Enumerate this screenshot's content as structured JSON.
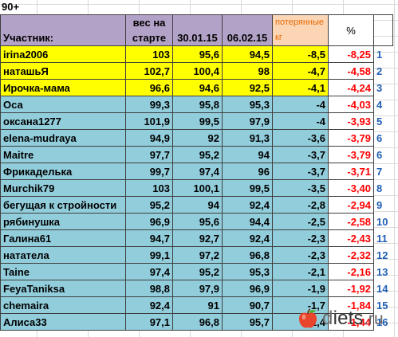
{
  "title": "90+",
  "headers": {
    "name": "Участник:",
    "start": [
      "вес на",
      "старте"
    ],
    "d1": "30.01.15",
    "d2": "06.02.15",
    "lost": [
      "потерянные",
      "кг"
    ],
    "pct": "%"
  },
  "rows": [
    {
      "name": "irina2006",
      "start": "103",
      "d1": "95,6",
      "d2": "94,5",
      "lost": "-8,5",
      "pct": "-8,25",
      "idx": "1",
      "hl": "yellow"
    },
    {
      "name": "наташьЯ",
      "start": "102,7",
      "d1": "100,4",
      "d2": "98",
      "lost": "-4,7",
      "pct": "-4,58",
      "idx": "2",
      "hl": "yellow"
    },
    {
      "name": "Ирочка-мама",
      "start": "96,6",
      "d1": "94,6",
      "d2": "92,5",
      "lost": "-4,1",
      "pct": "-4,24",
      "idx": "3",
      "hl": "yellow"
    },
    {
      "name": "Оса",
      "start": "99,3",
      "d1": "95,8",
      "d2": "95,3",
      "lost": "-4",
      "pct": "-4,03",
      "idx": "4",
      "hl": "blue"
    },
    {
      "name": "оксана1277",
      "start": "101,9",
      "d1": "99,5",
      "d2": "97,9",
      "lost": "-4",
      "pct": "-3,93",
      "idx": "5",
      "hl": "blue"
    },
    {
      "name": "elena-mudraya",
      "start": "94,9",
      "d1": "92",
      "d2": "91,3",
      "lost": "-3,6",
      "pct": "-3,79",
      "idx": "6",
      "hl": "blue"
    },
    {
      "name": "Maitre",
      "start": "97,7",
      "d1": "95,2",
      "d2": "94",
      "lost": "-3,7",
      "pct": "-3,79",
      "idx": "6",
      "hl": "blue"
    },
    {
      "name": "Фрикаделька",
      "start": "99,7",
      "d1": "97,4",
      "d2": "96",
      "lost": "-3,7",
      "pct": "-3,71",
      "idx": "7",
      "hl": "blue"
    },
    {
      "name": "Murchik79",
      "start": "103",
      "d1": "100,1",
      "d2": "99,5",
      "lost": "-3,5",
      "pct": "-3,40",
      "idx": "8",
      "hl": "blue"
    },
    {
      "name": "бегущая к стройности",
      "start": "95,2",
      "d1": "94",
      "d2": "92,4",
      "lost": "-2,8",
      "pct": "-2,94",
      "idx": "9",
      "hl": "blue"
    },
    {
      "name": "рябинушка",
      "start": "96,9",
      "d1": "95,6",
      "d2": "94,4",
      "lost": "-2,5",
      "pct": "-2,58",
      "idx": "10",
      "hl": "blue"
    },
    {
      "name": "Галина61",
      "start": "94,7",
      "d1": "92,7",
      "d2": "92,4",
      "lost": "-2,3",
      "pct": "-2,43",
      "idx": "11",
      "hl": "blue"
    },
    {
      "name": "нататела",
      "start": "99,1",
      "d1": "97,2",
      "d2": "96,8",
      "lost": "-2,3",
      "pct": "-2,32",
      "idx": "12",
      "hl": "blue"
    },
    {
      "name": "Taine",
      "start": "97,4",
      "d1": "95,2",
      "d2": "95,3",
      "lost": "-2,1",
      "pct": "-2,16",
      "idx": "13",
      "hl": "blue"
    },
    {
      "name": "FeyaTaniksa",
      "start": "98,8",
      "d1": "97,9",
      "d2": "96,9",
      "lost": "-1,9",
      "pct": "-1,92",
      "idx": "14",
      "hl": "blue"
    },
    {
      "name": "chemaira",
      "start": "92,4",
      "d1": "91",
      "d2": "90,7",
      "lost": "-1,7",
      "pct": "-1,84",
      "idx": "15",
      "hl": "blue"
    },
    {
      "name": "Алиса33",
      "start": "97,1",
      "d1": "96,8",
      "d2": "95,7",
      "lost": "-1,4",
      "pct": "-1,44",
      "idx": "16",
      "hl": "blue"
    }
  ],
  "logo": {
    "d": "d",
    "name": "iets",
    "tld": ".ru"
  },
  "colors": {
    "header": "#b3a2c7",
    "lost_header": "#fcd5b4",
    "yellow": "#ffff00",
    "blue": "#92cddc",
    "pct": "#ff0000",
    "idx": "#1f5fb4"
  }
}
